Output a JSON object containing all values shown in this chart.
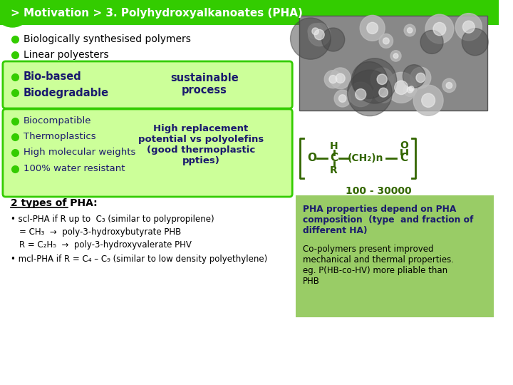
{
  "title": "> Motivation > 3. Polyhydroxyalkanoates (PHA)",
  "title_bg": "#33cc00",
  "title_color": "#ffffff",
  "bg_color": "#ffffff",
  "bullet_color": "#33cc00",
  "text_color_dark": "#1a1a6e",
  "text_color_green": "#336600",
  "text_color_body": "#000000",
  "bullets_top": [
    "Biologically synthesised polymers",
    "Linear polyesters"
  ],
  "box1_bullets": [
    "Bio-based",
    "Biodegradable"
  ],
  "box1_label": "sustainable\nprocess",
  "box1_bg": "#ccff99",
  "box1_border": "#33cc00",
  "box2_bullets": [
    "Biocompatible",
    "Thermoplastics",
    "High molecular weights",
    "100% water resistant"
  ],
  "box2_label": "High replacement\npotential vs polyolefins\n(good thermoplastic\nppties)",
  "box2_bg": "#ccff99",
  "box2_border": "#33cc00",
  "types_title": "2 types of PHA:",
  "scl_line1": "• scl-PHA if R up to  C₃ (similar to polypropilene)",
  "scl_line2": "= CH₃  →  poly-3-hydroxybutyrate PHB",
  "scl_line3": "R = C₂H₅  →  poly-3-hydroxyvalerate PHV",
  "mcl_line": "• mcl-PHA if R = C₄ – C₉ (similar to low density polyethylene)",
  "pha_box_bg": "#99cc66",
  "pha_box_text_bold": "PHA properties depend on PHA\ncomposition  (type  and fraction of\ndifferent HA)",
  "pha_box_text_normal": "Co-polymers present improved\nmechanical and thermal properties.\neg. P(HB-co-HV) more pliable than\nPHB",
  "chem_color": "#336600",
  "n_label": "100 - 30000"
}
